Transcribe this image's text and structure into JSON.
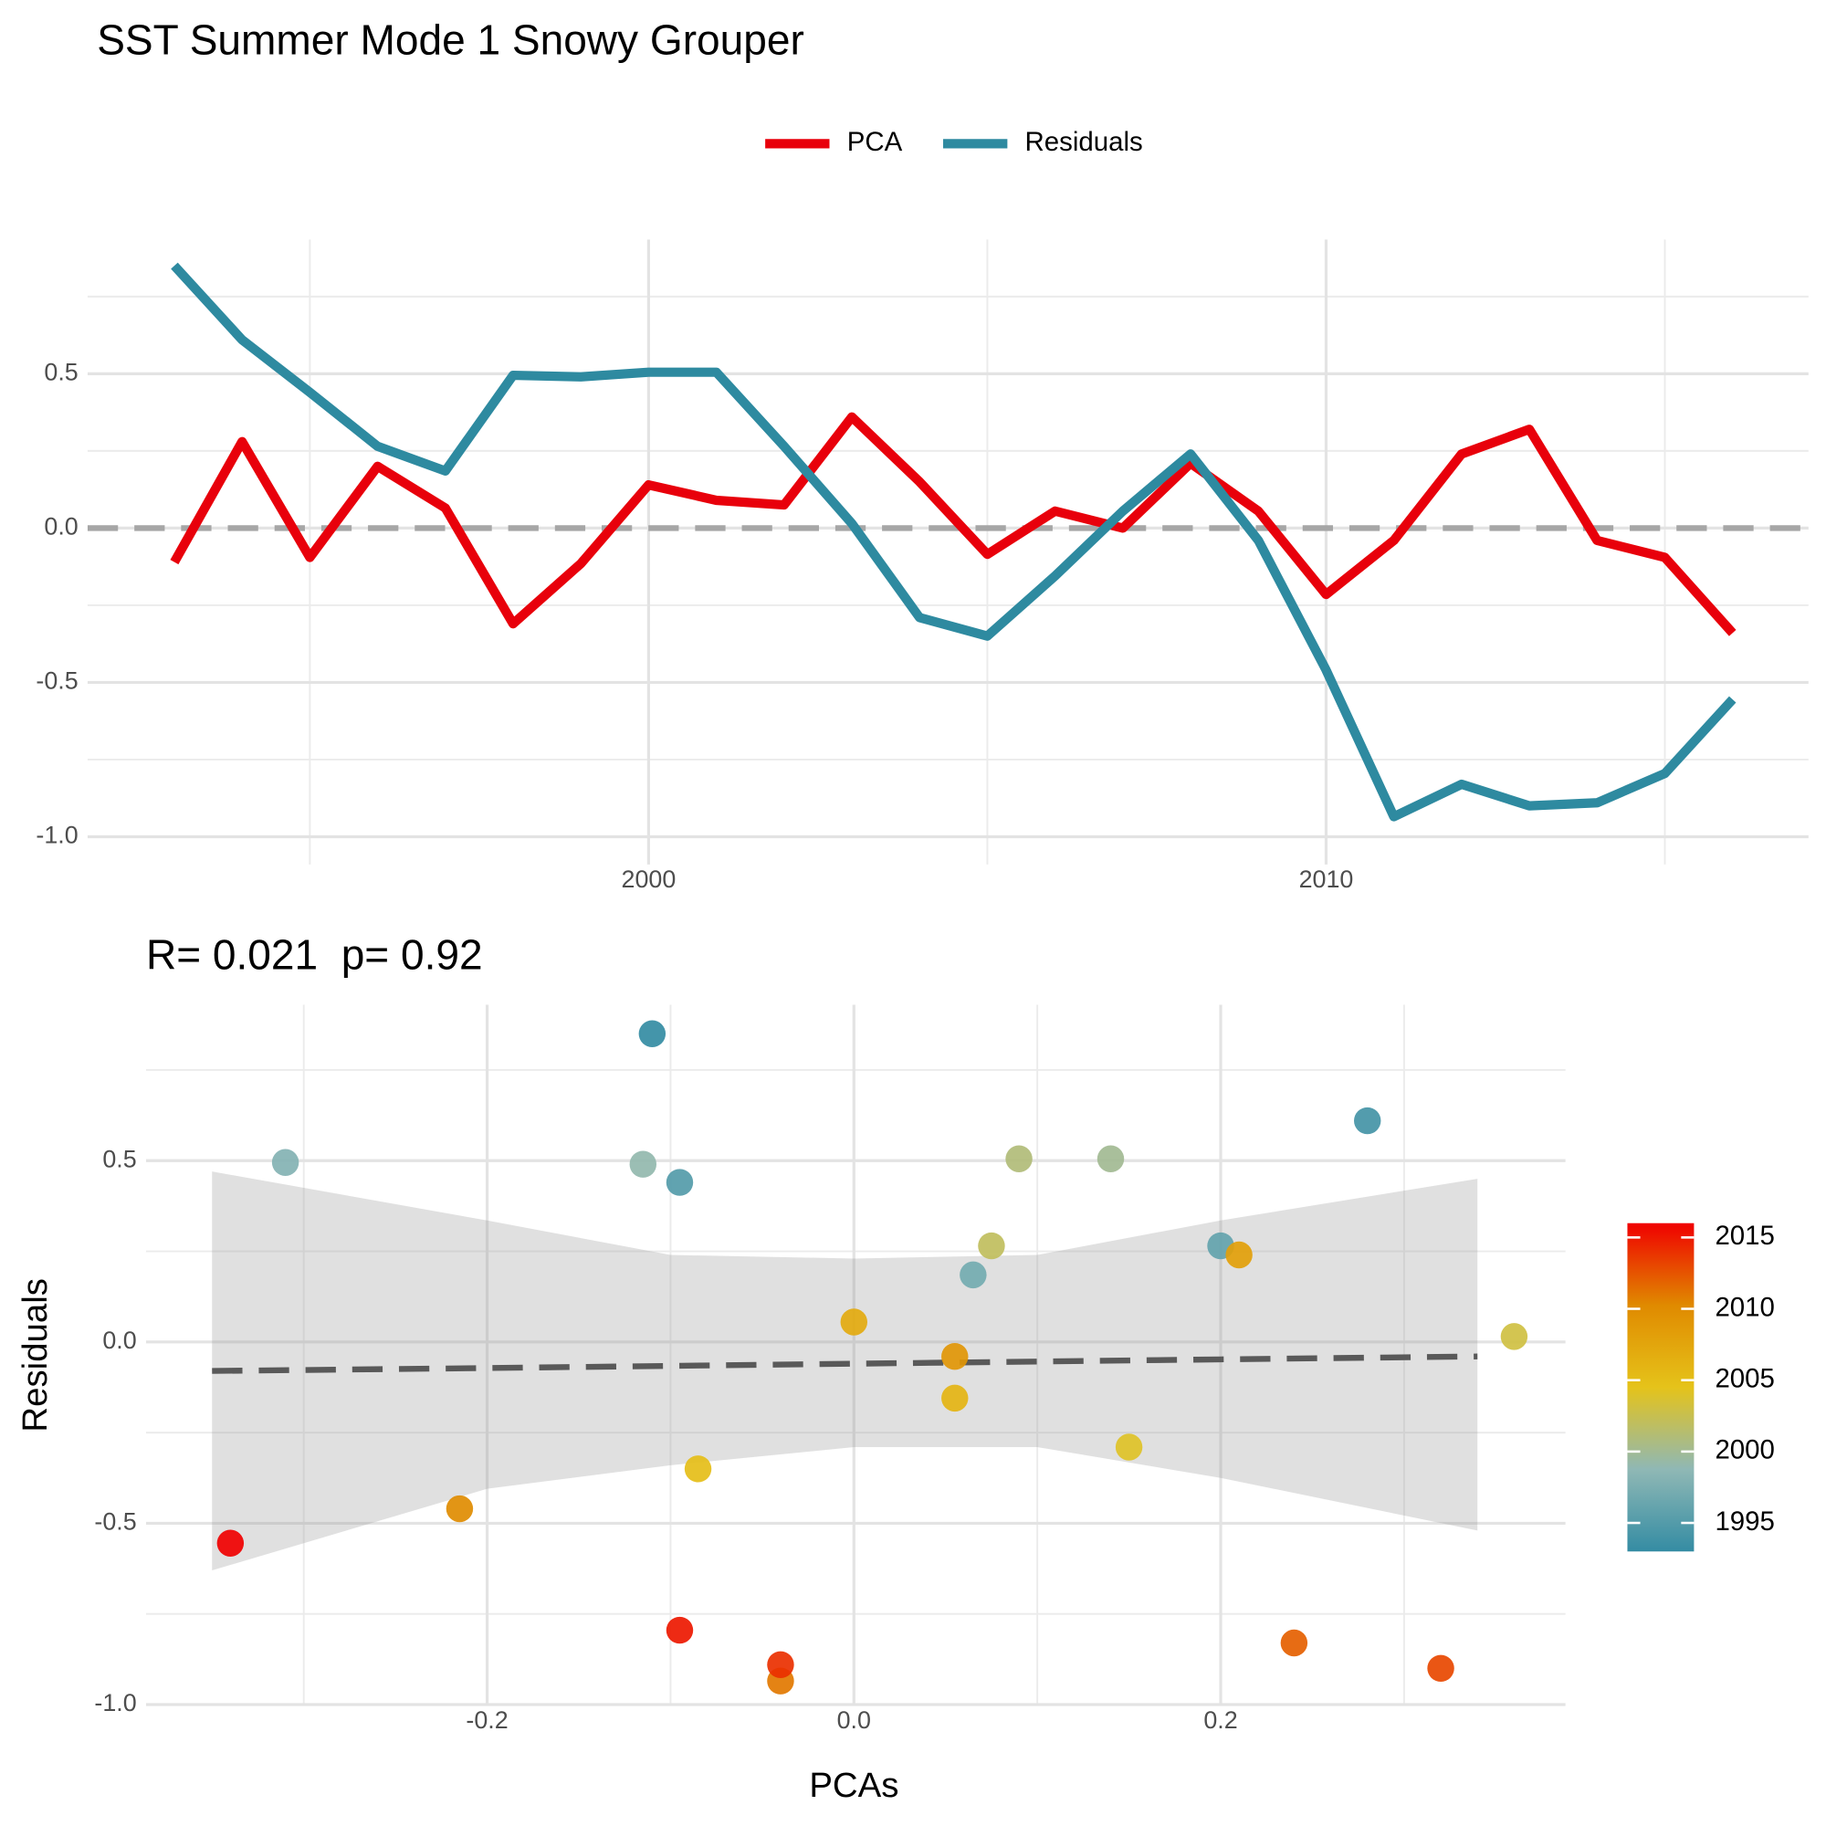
{
  "chart_data": [
    {
      "type": "line",
      "title": "SST Summer Mode 1 Snowy Grouper",
      "x": [
        1993,
        1994,
        1995,
        1996,
        1997,
        1998,
        1999,
        2000,
        2001,
        2002,
        2003,
        2004,
        2005,
        2006,
        2007,
        2008,
        2009,
        2010,
        2011,
        2012,
        2013,
        2014,
        2015,
        2016
      ],
      "series": [
        {
          "name": "PCA",
          "color": "#e8000b",
          "values": [
            -0.11,
            0.28,
            -0.095,
            0.2,
            0.065,
            -0.31,
            -0.115,
            0.14,
            0.09,
            0.075,
            0.36,
            0.15,
            -0.085,
            0.055,
            0,
            0.21,
            0.055,
            -0.215,
            -0.04,
            0.24,
            0.32,
            -0.04,
            -0.095,
            -0.34
          ]
        },
        {
          "name": "Residuals",
          "color": "#2e8aa0",
          "values": [
            0.85,
            0.61,
            0.44,
            0.265,
            0.185,
            0.495,
            0.49,
            0.505,
            0.505,
            0.265,
            0.015,
            -0.29,
            -0.35,
            -0.155,
            0.055,
            0.24,
            -0.04,
            -0.46,
            -0.935,
            -0.83,
            -0.9,
            -0.89,
            -0.795,
            -0.555
          ]
        }
      ],
      "xlim": [
        1991.72,
        2017.12
      ],
      "xticks": [
        2000,
        2010
      ],
      "minor_xticks": [
        1995,
        2005,
        2015
      ],
      "ylim": [
        -1.09,
        0.935
      ],
      "yticks": [
        {
          "value": -1,
          "label": "-1.0"
        },
        -0.5,
        {
          "value": 0,
          "label": "0.0"
        },
        0.5
      ],
      "minor_yticks": [
        -0.75,
        -0.25,
        0.25,
        0.75
      ],
      "reference_line": 0,
      "legend": "top",
      "grid": true
    },
    {
      "type": "scatter",
      "title": "R= 0.021  p= 0.92",
      "xlabel": "PCAs",
      "ylabel": "Residuals",
      "x": [
        -0.11,
        0.28,
        -0.095,
        0.2,
        0.065,
        -0.31,
        -0.115,
        0.14,
        0.09,
        0.075,
        0.36,
        0.15,
        -0.085,
        0.055,
        0,
        0.21,
        0.055,
        -0.215,
        -0.04,
        0.24,
        0.32,
        -0.04,
        -0.095,
        -0.34
      ],
      "y": [
        0.85,
        0.61,
        0.44,
        0.265,
        0.185,
        0.495,
        0.49,
        0.505,
        0.505,
        0.265,
        0.015,
        -0.29,
        -0.35,
        -0.155,
        0.055,
        0.24,
        -0.04,
        -0.46,
        -0.935,
        -0.83,
        -0.9,
        -0.89,
        -0.795,
        -0.555
      ],
      "color_values": [
        1993,
        1994,
        1995,
        1996,
        1997,
        1998,
        1999,
        2000,
        2001,
        2002,
        2003,
        2004,
        2005,
        2006,
        2007,
        2008,
        2009,
        2010,
        2011,
        2012,
        2013,
        2014,
        2015,
        2016
      ],
      "colorscale": {
        "limits": [
          1993,
          2016
        ],
        "colors": [
          "#348ca3",
          "#8fb8b5",
          "#e5c31a",
          "#e08a00",
          "#f00000"
        ],
        "ticks": [
          1995,
          2000,
          2005,
          2010,
          2015
        ]
      },
      "fit": {
        "x": [
          -0.35,
          -0.2,
          -0.1,
          0,
          0.1,
          0.2,
          0.34
        ],
        "values": [
          -0.08,
          -0.072,
          -0.066,
          -0.06,
          -0.054,
          -0.048,
          -0.04
        ],
        "lower": [
          -0.63,
          -0.405,
          -0.34,
          -0.29,
          -0.29,
          -0.375,
          -0.52
        ],
        "upper": [
          0.47,
          0.335,
          0.24,
          0.23,
          0.24,
          0.335,
          0.45
        ]
      },
      "xlim": [
        -0.386,
        0.388
      ],
      "xticks": [
        -0.2,
        {
          "value": 0,
          "label": "0.0"
        },
        0.2
      ],
      "minor_xticks": [
        -0.3,
        -0.1,
        0.1,
        0.3
      ],
      "ylim": [
        -1.003,
        0.93
      ],
      "yticks": [
        {
          "value": -1,
          "label": "-1.0"
        },
        -0.5,
        {
          "value": 0,
          "label": "0.0"
        },
        0.5
      ],
      "minor_yticks": [
        -0.75,
        -0.25,
        0.25,
        0.75
      ],
      "grid": true
    }
  ]
}
